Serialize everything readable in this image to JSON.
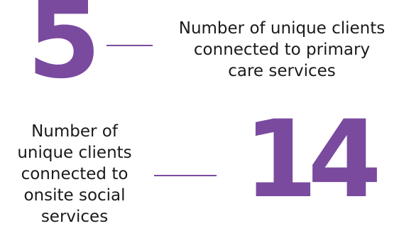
{
  "accent_color": "#7a4a9f",
  "stats": [
    {
      "value": "5",
      "label_lines": [
        "Number of unique clients",
        "connected to primary",
        "care services"
      ]
    },
    {
      "value": "14",
      "label_lines": [
        "Number of",
        "unique clients",
        "connected to",
        "onsite social",
        "services"
      ]
    }
  ]
}
